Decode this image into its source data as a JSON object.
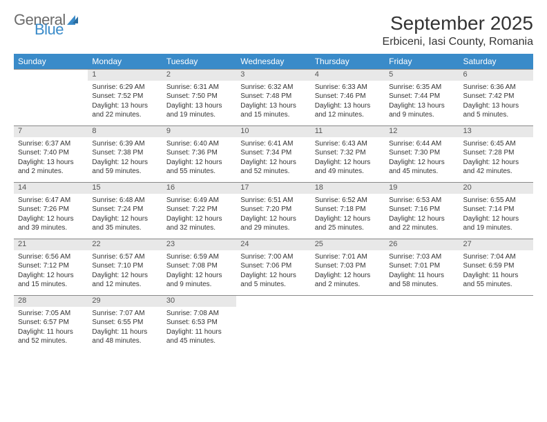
{
  "brand": {
    "part1": "General",
    "part2": "Blue"
  },
  "title": "September 2025",
  "location": "Erbiceni, Iasi County, Romania",
  "colors": {
    "header_bg": "#3a8bc9",
    "daynum_bg": "#e8e8e8",
    "border": "#888888"
  },
  "day_headers": [
    "Sunday",
    "Monday",
    "Tuesday",
    "Wednesday",
    "Thursday",
    "Friday",
    "Saturday"
  ],
  "weeks": [
    [
      {
        "n": "",
        "sunrise": "",
        "sunset": "",
        "daylight": ""
      },
      {
        "n": "1",
        "sunrise": "Sunrise: 6:29 AM",
        "sunset": "Sunset: 7:52 PM",
        "daylight": "Daylight: 13 hours and 22 minutes."
      },
      {
        "n": "2",
        "sunrise": "Sunrise: 6:31 AM",
        "sunset": "Sunset: 7:50 PM",
        "daylight": "Daylight: 13 hours and 19 minutes."
      },
      {
        "n": "3",
        "sunrise": "Sunrise: 6:32 AM",
        "sunset": "Sunset: 7:48 PM",
        "daylight": "Daylight: 13 hours and 15 minutes."
      },
      {
        "n": "4",
        "sunrise": "Sunrise: 6:33 AM",
        "sunset": "Sunset: 7:46 PM",
        "daylight": "Daylight: 13 hours and 12 minutes."
      },
      {
        "n": "5",
        "sunrise": "Sunrise: 6:35 AM",
        "sunset": "Sunset: 7:44 PM",
        "daylight": "Daylight: 13 hours and 9 minutes."
      },
      {
        "n": "6",
        "sunrise": "Sunrise: 6:36 AM",
        "sunset": "Sunset: 7:42 PM",
        "daylight": "Daylight: 13 hours and 5 minutes."
      }
    ],
    [
      {
        "n": "7",
        "sunrise": "Sunrise: 6:37 AM",
        "sunset": "Sunset: 7:40 PM",
        "daylight": "Daylight: 13 hours and 2 minutes."
      },
      {
        "n": "8",
        "sunrise": "Sunrise: 6:39 AM",
        "sunset": "Sunset: 7:38 PM",
        "daylight": "Daylight: 12 hours and 59 minutes."
      },
      {
        "n": "9",
        "sunrise": "Sunrise: 6:40 AM",
        "sunset": "Sunset: 7:36 PM",
        "daylight": "Daylight: 12 hours and 55 minutes."
      },
      {
        "n": "10",
        "sunrise": "Sunrise: 6:41 AM",
        "sunset": "Sunset: 7:34 PM",
        "daylight": "Daylight: 12 hours and 52 minutes."
      },
      {
        "n": "11",
        "sunrise": "Sunrise: 6:43 AM",
        "sunset": "Sunset: 7:32 PM",
        "daylight": "Daylight: 12 hours and 49 minutes."
      },
      {
        "n": "12",
        "sunrise": "Sunrise: 6:44 AM",
        "sunset": "Sunset: 7:30 PM",
        "daylight": "Daylight: 12 hours and 45 minutes."
      },
      {
        "n": "13",
        "sunrise": "Sunrise: 6:45 AM",
        "sunset": "Sunset: 7:28 PM",
        "daylight": "Daylight: 12 hours and 42 minutes."
      }
    ],
    [
      {
        "n": "14",
        "sunrise": "Sunrise: 6:47 AM",
        "sunset": "Sunset: 7:26 PM",
        "daylight": "Daylight: 12 hours and 39 minutes."
      },
      {
        "n": "15",
        "sunrise": "Sunrise: 6:48 AM",
        "sunset": "Sunset: 7:24 PM",
        "daylight": "Daylight: 12 hours and 35 minutes."
      },
      {
        "n": "16",
        "sunrise": "Sunrise: 6:49 AM",
        "sunset": "Sunset: 7:22 PM",
        "daylight": "Daylight: 12 hours and 32 minutes."
      },
      {
        "n": "17",
        "sunrise": "Sunrise: 6:51 AM",
        "sunset": "Sunset: 7:20 PM",
        "daylight": "Daylight: 12 hours and 29 minutes."
      },
      {
        "n": "18",
        "sunrise": "Sunrise: 6:52 AM",
        "sunset": "Sunset: 7:18 PM",
        "daylight": "Daylight: 12 hours and 25 minutes."
      },
      {
        "n": "19",
        "sunrise": "Sunrise: 6:53 AM",
        "sunset": "Sunset: 7:16 PM",
        "daylight": "Daylight: 12 hours and 22 minutes."
      },
      {
        "n": "20",
        "sunrise": "Sunrise: 6:55 AM",
        "sunset": "Sunset: 7:14 PM",
        "daylight": "Daylight: 12 hours and 19 minutes."
      }
    ],
    [
      {
        "n": "21",
        "sunrise": "Sunrise: 6:56 AM",
        "sunset": "Sunset: 7:12 PM",
        "daylight": "Daylight: 12 hours and 15 minutes."
      },
      {
        "n": "22",
        "sunrise": "Sunrise: 6:57 AM",
        "sunset": "Sunset: 7:10 PM",
        "daylight": "Daylight: 12 hours and 12 minutes."
      },
      {
        "n": "23",
        "sunrise": "Sunrise: 6:59 AM",
        "sunset": "Sunset: 7:08 PM",
        "daylight": "Daylight: 12 hours and 9 minutes."
      },
      {
        "n": "24",
        "sunrise": "Sunrise: 7:00 AM",
        "sunset": "Sunset: 7:06 PM",
        "daylight": "Daylight: 12 hours and 5 minutes."
      },
      {
        "n": "25",
        "sunrise": "Sunrise: 7:01 AM",
        "sunset": "Sunset: 7:03 PM",
        "daylight": "Daylight: 12 hours and 2 minutes."
      },
      {
        "n": "26",
        "sunrise": "Sunrise: 7:03 AM",
        "sunset": "Sunset: 7:01 PM",
        "daylight": "Daylight: 11 hours and 58 minutes."
      },
      {
        "n": "27",
        "sunrise": "Sunrise: 7:04 AM",
        "sunset": "Sunset: 6:59 PM",
        "daylight": "Daylight: 11 hours and 55 minutes."
      }
    ],
    [
      {
        "n": "28",
        "sunrise": "Sunrise: 7:05 AM",
        "sunset": "Sunset: 6:57 PM",
        "daylight": "Daylight: 11 hours and 52 minutes."
      },
      {
        "n": "29",
        "sunrise": "Sunrise: 7:07 AM",
        "sunset": "Sunset: 6:55 PM",
        "daylight": "Daylight: 11 hours and 48 minutes."
      },
      {
        "n": "30",
        "sunrise": "Sunrise: 7:08 AM",
        "sunset": "Sunset: 6:53 PM",
        "daylight": "Daylight: 11 hours and 45 minutes."
      },
      {
        "n": "",
        "sunrise": "",
        "sunset": "",
        "daylight": ""
      },
      {
        "n": "",
        "sunrise": "",
        "sunset": "",
        "daylight": ""
      },
      {
        "n": "",
        "sunrise": "",
        "sunset": "",
        "daylight": ""
      },
      {
        "n": "",
        "sunrise": "",
        "sunset": "",
        "daylight": ""
      }
    ]
  ]
}
